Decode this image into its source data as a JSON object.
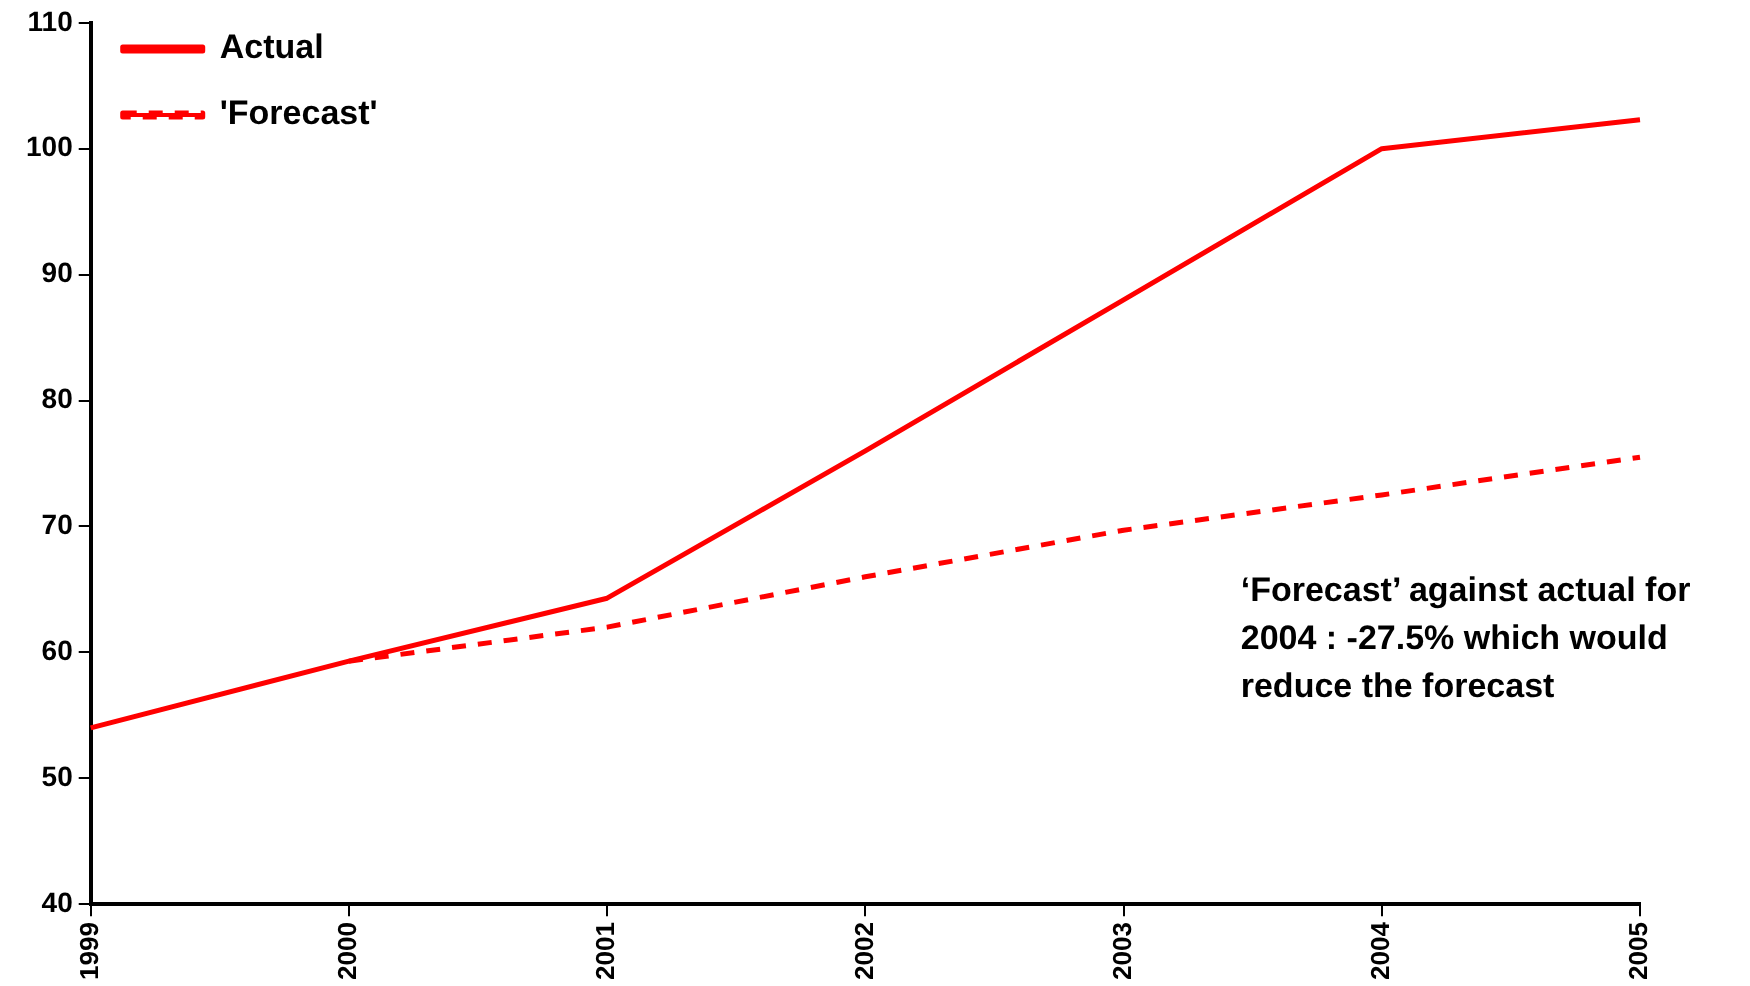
{
  "chart_data": {
    "type": "line",
    "categories": [
      "1999",
      "2000",
      "2001",
      "2002",
      "2003",
      "2004",
      "2005"
    ],
    "series": [
      {
        "name": "Actual",
        "color": "#ff0000",
        "line_style": "solid",
        "values": [
          54,
          59.3,
          64.3,
          76,
          88,
          100,
          102.3
        ]
      },
      {
        "name": "'Forecast'",
        "color": "#ff0000",
        "line_style": "dashed",
        "values": [
          null,
          59.3,
          62,
          66,
          69.7,
          72.5,
          75.5
        ]
      }
    ],
    "ylim": [
      40,
      110
    ],
    "yticks": [
      40,
      50,
      60,
      70,
      80,
      90,
      100,
      110
    ],
    "grid": false,
    "legend": "top left",
    "marker": "none",
    "annotations": [
      "‘Forecast’ against actual for 2004 : -27.5% which would reduce the forecast"
    ]
  }
}
